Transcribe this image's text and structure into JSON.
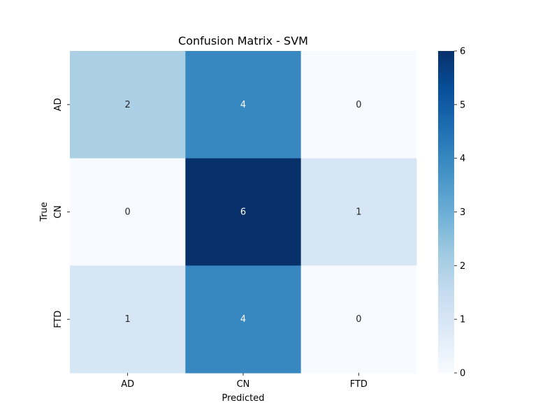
{
  "chart_data": {
    "type": "heatmap",
    "title": "Confusion Matrix - SVM",
    "xlabel": "Predicted",
    "ylabel": "True",
    "x_categories": [
      "AD",
      "CN",
      "FTD"
    ],
    "y_categories": [
      "AD",
      "CN",
      "FTD"
    ],
    "values": [
      [
        2,
        4,
        0
      ],
      [
        0,
        6,
        1
      ],
      [
        1,
        4,
        0
      ]
    ],
    "colormap": "Blues",
    "vmin": 0,
    "vmax": 6,
    "colorbar_ticks": [
      "0",
      "1",
      "2",
      "3",
      "4",
      "5",
      "6"
    ],
    "colors": {
      "low": "#f7fbff",
      "high": "#08306b",
      "text_dark": "#262626",
      "text_light": "#ffffff"
    }
  }
}
